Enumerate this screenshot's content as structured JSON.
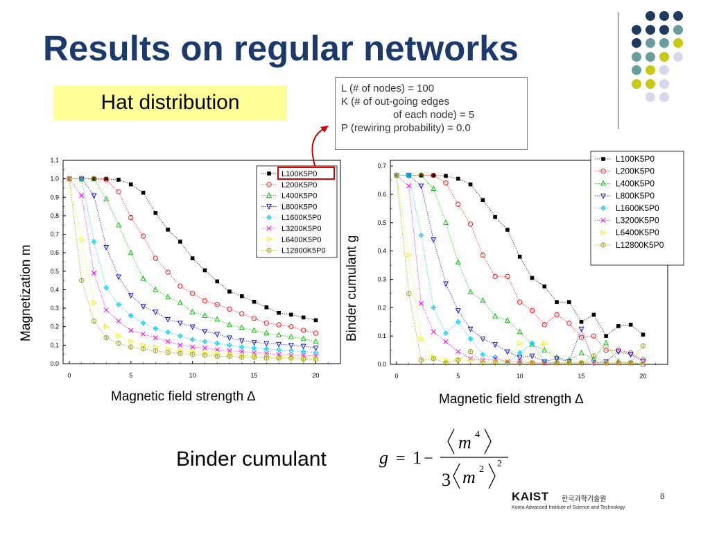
{
  "slide": {
    "title": "Results on regular networks",
    "hat_label": "Hat distribution",
    "params": [
      "L (# of nodes) = 100",
      "K (# of out-going edges",
      "of each node) = 5",
      "P (rewiring probability) = 0.0"
    ],
    "binder_label": "Binder cumulant",
    "page_number": "8",
    "logo": {
      "name": "KAIST",
      "korean": "한국과학기술원",
      "english": "Korea Advanced Institute of Science and Technology"
    },
    "formula": {
      "lhs": "g",
      "one": "1",
      "num": "m",
      "num_exp": "4",
      "den_coef": "3",
      "den": "m",
      "den_exp": "2",
      "outer_exp": "2"
    },
    "colors": {
      "title": "#1b3a6b",
      "hat_bg": "#ffff99",
      "arrow": "#cc0000",
      "dot_navy": "#1f3a5f",
      "dot_teal": "#6a9e9e",
      "dot_olive": "#c8c818",
      "dot_lilac": "#d8d8ea"
    }
  },
  "chart_data": [
    {
      "type": "scatter",
      "title": "",
      "xlabel": "Magnetic field strength ∆",
      "ylabel": "Magnetization   m",
      "xlim": [
        -0.5,
        22
      ],
      "ylim": [
        0,
        1.1
      ],
      "xticks": [
        "0",
        "5",
        "10",
        "15",
        "20"
      ],
      "yticks": [
        "0.0",
        "0.1",
        "0.2",
        "0.3",
        "0.4",
        "0.5",
        "0.6",
        "0.7",
        "0.8",
        "0.9",
        "1.0",
        "1.1"
      ],
      "grid": false,
      "legend_position": "top-right",
      "x": [
        0,
        1,
        2,
        3,
        4,
        5,
        6,
        7,
        8,
        9,
        10,
        11,
        12,
        13,
        14,
        15,
        16,
        17,
        18,
        19,
        20
      ],
      "series": [
        {
          "name": "L100K5P0",
          "color": "#000000",
          "marker": "square-filled",
          "values": [
            1.0,
            1.0,
            1.0,
            1.0,
            0.995,
            0.97,
            0.925,
            0.815,
            0.725,
            0.66,
            0.57,
            0.505,
            0.445,
            0.39,
            0.365,
            0.335,
            0.305,
            0.275,
            0.265,
            0.25,
            0.235
          ]
        },
        {
          "name": "L200K5P0",
          "color": "#ff0000",
          "marker": "circle",
          "values": [
            1.0,
            1.0,
            1.0,
            0.995,
            0.93,
            0.79,
            0.69,
            0.57,
            0.495,
            0.42,
            0.38,
            0.34,
            0.32,
            0.295,
            0.27,
            0.245,
            0.22,
            0.21,
            0.2,
            0.18,
            0.165
          ]
        },
        {
          "name": "L400K5P0",
          "color": "#00bb00",
          "marker": "triangle-up",
          "values": [
            1.0,
            1.0,
            1.0,
            0.89,
            0.75,
            0.6,
            0.46,
            0.4,
            0.36,
            0.33,
            0.28,
            0.26,
            0.24,
            0.21,
            0.195,
            0.18,
            0.165,
            0.155,
            0.145,
            0.135,
            0.12
          ]
        },
        {
          "name": "L800K5P0",
          "color": "#0000cc",
          "marker": "triangle-down",
          "values": [
            1.0,
            1.0,
            0.91,
            0.63,
            0.47,
            0.37,
            0.31,
            0.28,
            0.24,
            0.22,
            0.2,
            0.175,
            0.16,
            0.14,
            0.125,
            0.115,
            0.11,
            0.105,
            0.1,
            0.095,
            0.085
          ]
        },
        {
          "name": "L1600K5P0",
          "color": "#00ccee",
          "marker": "diamond-cross",
          "values": [
            1.0,
            1.0,
            0.66,
            0.41,
            0.32,
            0.26,
            0.22,
            0.19,
            0.17,
            0.15,
            0.13,
            0.12,
            0.11,
            0.1,
            0.09,
            0.085,
            0.08,
            0.075,
            0.07,
            0.065,
            0.06
          ]
        },
        {
          "name": "L3200K5P0",
          "color": "#ee00ee",
          "marker": "x",
          "values": [
            1.0,
            0.91,
            0.49,
            0.29,
            0.23,
            0.18,
            0.16,
            0.14,
            0.12,
            0.1,
            0.09,
            0.085,
            0.075,
            0.07,
            0.065,
            0.06,
            0.055,
            0.05,
            0.045,
            0.045,
            0.04
          ]
        },
        {
          "name": "L6400K5P0",
          "color": "#eeee00",
          "marker": "triangle-right",
          "values": [
            1.0,
            0.67,
            0.33,
            0.2,
            0.15,
            0.12,
            0.1,
            0.09,
            0.08,
            0.07,
            0.065,
            0.06,
            0.055,
            0.05,
            0.045,
            0.04,
            0.04,
            0.035,
            0.035,
            0.03,
            0.03
          ]
        },
        {
          "name": "L12800K5P0",
          "color": "#999900",
          "marker": "circle-bar",
          "values": [
            1.0,
            0.45,
            0.23,
            0.14,
            0.11,
            0.09,
            0.08,
            0.07,
            0.06,
            0.055,
            0.05,
            0.045,
            0.04,
            0.04,
            0.035,
            0.035,
            0.03,
            0.03,
            0.03,
            0.025,
            0.025
          ]
        }
      ]
    },
    {
      "type": "scatter",
      "title": "",
      "xlabel": "Magnetic field strength ∆",
      "ylabel": "Binder cumulant g",
      "xlim": [
        -0.5,
        22
      ],
      "ylim": [
        0,
        0.72
      ],
      "xticks": [
        "0",
        "5",
        "10",
        "15",
        "20"
      ],
      "yticks": [
        "0.0",
        "0.1",
        "0.2",
        "0.3",
        "0.4",
        "0.5",
        "0.6",
        "0.7"
      ],
      "grid": false,
      "legend_position": "top-right",
      "x": [
        0,
        1,
        2,
        3,
        4,
        5,
        6,
        7,
        8,
        9,
        10,
        11,
        12,
        13,
        14,
        15,
        16,
        17,
        18,
        19,
        20
      ],
      "series": [
        {
          "name": "L100K5P0",
          "color": "#000000",
          "marker": "square-filled",
          "values": [
            0.667,
            0.667,
            0.667,
            0.667,
            0.665,
            0.655,
            0.635,
            0.58,
            0.52,
            0.475,
            0.38,
            0.305,
            0.275,
            0.22,
            0.22,
            0.15,
            0.175,
            0.1,
            0.135,
            0.14,
            0.105
          ]
        },
        {
          "name": "L200K5P0",
          "color": "#ff0000",
          "marker": "circle",
          "values": [
            0.667,
            0.667,
            0.667,
            0.667,
            0.64,
            0.565,
            0.495,
            0.385,
            0.31,
            0.31,
            0.22,
            0.19,
            0.14,
            0.175,
            0.145,
            0.095,
            0.1,
            0.05,
            0.05,
            0.04,
            0.015
          ]
        },
        {
          "name": "L400K5P0",
          "color": "#00bb00",
          "marker": "triangle-up",
          "values": [
            0.667,
            0.667,
            0.667,
            0.62,
            0.5,
            0.36,
            0.255,
            0.225,
            0.17,
            0.155,
            0.115,
            0.07,
            0.05,
            0.025,
            0.015,
            0.04,
            0.02,
            0.075,
            0.01,
            0.005,
            0.0
          ]
        },
        {
          "name": "L800K5P0",
          "color": "#0000cc",
          "marker": "triangle-down",
          "values": [
            0.667,
            0.667,
            0.63,
            0.44,
            0.285,
            0.19,
            0.125,
            0.09,
            0.07,
            0.045,
            0.025,
            0.03,
            0.01,
            0.02,
            0.01,
            0.125,
            0.005,
            0.01,
            0.045,
            0.035,
            0.01
          ]
        },
        {
          "name": "L1600K5P0",
          "color": "#00ccee",
          "marker": "diamond-cross",
          "values": [
            0.667,
            0.667,
            0.455,
            0.2,
            0.11,
            0.15,
            0.09,
            0.035,
            0.025,
            0.005,
            0.04,
            0.075,
            0.01,
            0.005,
            0.005,
            0.005,
            0.01,
            0.005,
            0.005,
            0.005,
            0.005
          ]
        },
        {
          "name": "L3200K5P0",
          "color": "#ee00ee",
          "marker": "x",
          "values": [
            0.667,
            0.63,
            0.215,
            0.115,
            0.08,
            0.045,
            0.02,
            0.015,
            0.02,
            0.01,
            0.01,
            0.005,
            0.005,
            0.005,
            0.005,
            0.005,
            0.005,
            0.005,
            0.005,
            0.005,
            0.005
          ]
        },
        {
          "name": "L6400K5P0",
          "color": "#eeee00",
          "marker": "triangle-right",
          "values": [
            0.667,
            0.385,
            0.09,
            0.025,
            0.015,
            0.015,
            0.015,
            0.01,
            0.01,
            0.01,
            0.075,
            0.005,
            0.075,
            0.005,
            0.005,
            0.005,
            0.005,
            0.005,
            0.005,
            0.005,
            0.005
          ]
        },
        {
          "name": "L12800K5P0",
          "color": "#999900",
          "marker": "circle-bar",
          "values": [
            0.667,
            0.25,
            0.015,
            0.02,
            0.005,
            0.015,
            0.045,
            0.005,
            0.005,
            0.005,
            0.005,
            0.005,
            0.005,
            0.005,
            0.005,
            0.005,
            0.03,
            0.005,
            0.005,
            0.005,
            0.065
          ]
        }
      ]
    }
  ]
}
